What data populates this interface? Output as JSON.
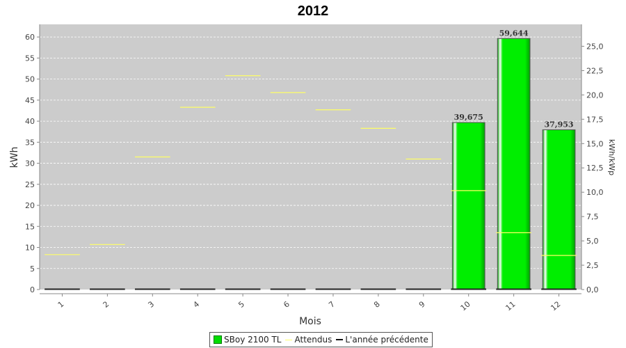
{
  "colors": {
    "background": "#ffffff",
    "plot_background": "#cccccc",
    "bar_fill": "#00ee00",
    "bar_dark": "#00a000",
    "expected_line": "#ffff66",
    "previous_year": "#222222"
  },
  "legend": {
    "items": [
      {
        "label": "SBoy 2100 TL",
        "icon": "green-square"
      },
      {
        "label": "Attendus",
        "icon": "yellow-line"
      },
      {
        "label": "L'année précédente",
        "icon": "black-line"
      }
    ]
  },
  "chart_data": {
    "type": "bar",
    "title": "2012",
    "xlabel": "Mois",
    "ylabel": "kWh",
    "y2label": "kWh/kWp",
    "categories": [
      "1",
      "2",
      "3",
      "4",
      "5",
      "6",
      "7",
      "8",
      "9",
      "10",
      "11",
      "12"
    ],
    "ylim": [
      0,
      63
    ],
    "yticks": [
      0,
      5,
      10,
      15,
      20,
      25,
      30,
      35,
      40,
      45,
      50,
      55,
      60
    ],
    "y2lim": [
      0,
      27.25
    ],
    "y2ticks": [
      "0,0",
      "2,5",
      "5,0",
      "7,5",
      "10,0",
      "12,5",
      "15,0",
      "17,5",
      "20,0",
      "22,5",
      "25,0"
    ],
    "grid": true,
    "legend_position": "bottom-center",
    "series": [
      {
        "name": "SBoy 2100 TL",
        "type": "bar",
        "values": [
          0,
          0,
          0,
          0,
          0,
          0,
          0,
          0,
          0,
          39.675,
          59.644,
          37.953
        ],
        "labels": [
          "",
          "",
          "",
          "",
          "",
          "",
          "",
          "",
          "",
          "39,675",
          "59,644",
          "37,953"
        ]
      },
      {
        "name": "Attendus",
        "type": "marker",
        "values": [
          8.3,
          10.7,
          31.5,
          43.3,
          50.8,
          46.8,
          42.7,
          38.3,
          31.0,
          23.5,
          13.5,
          8.1
        ]
      },
      {
        "name": "L'année précédente",
        "type": "marker",
        "values": [
          0,
          0,
          0,
          0,
          0,
          0,
          0,
          0,
          0,
          0,
          0,
          0
        ]
      }
    ]
  }
}
